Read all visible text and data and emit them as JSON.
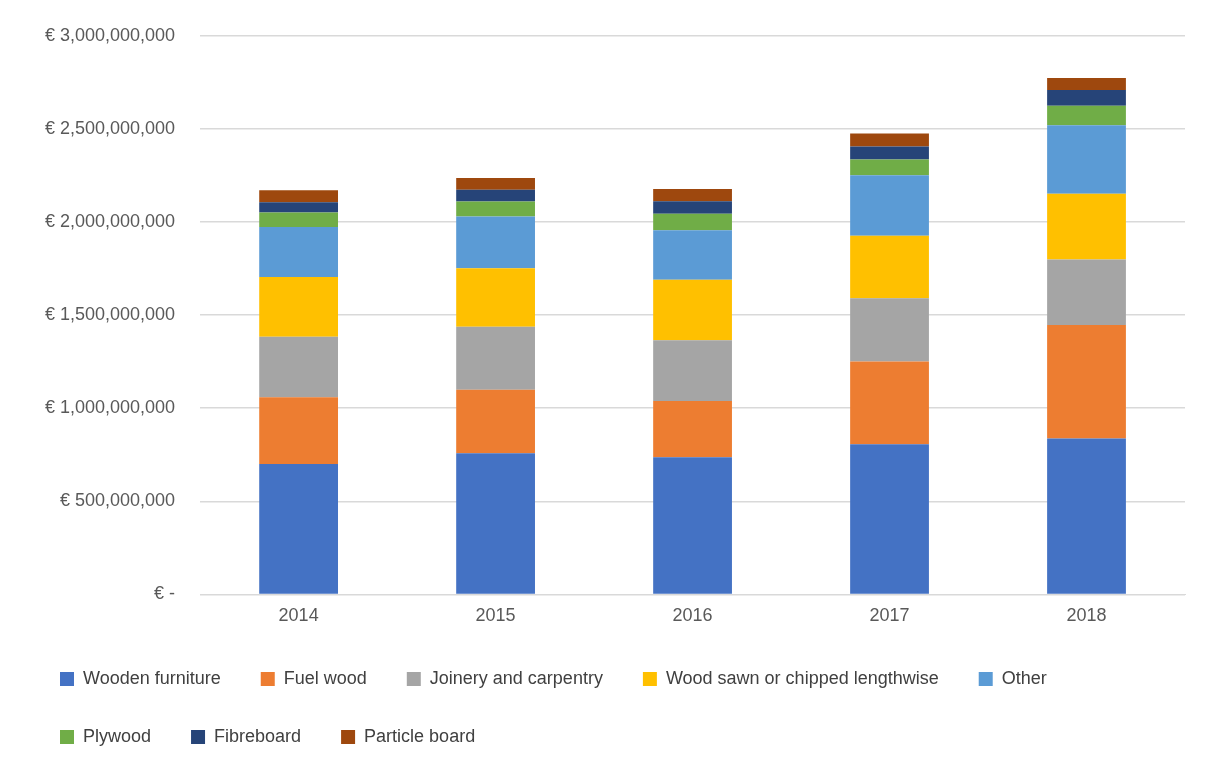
{
  "chart_data": {
    "type": "bar",
    "stacked": true,
    "categories": [
      "2014",
      "2015",
      "2016",
      "2017",
      "2018"
    ],
    "series": [
      {
        "name": "Wooden furniture",
        "color": "#4472c4",
        "values": [
          700000000,
          758000000,
          736000000,
          806000000,
          837000000
        ]
      },
      {
        "name": "Fuel wood",
        "color": "#ed7d31",
        "values": [
          359000000,
          341000000,
          302000000,
          445000000,
          610000000
        ]
      },
      {
        "name": "Joinery and carpentry",
        "color": "#a5a5a5",
        "values": [
          325000000,
          338000000,
          327000000,
          340000000,
          352000000
        ]
      },
      {
        "name": "Wood sawn or chipped lengthwise",
        "color": "#ffc000",
        "values": [
          320000000,
          314000000,
          325000000,
          335000000,
          353000000
        ]
      },
      {
        "name": "Other",
        "color": "#5b9bd5",
        "values": [
          269000000,
          279000000,
          266000000,
          325000000,
          367000000
        ]
      },
      {
        "name": "Plywood",
        "color": "#70ad47",
        "values": [
          78000000,
          80000000,
          88000000,
          84000000,
          106000000
        ]
      },
      {
        "name": "Fibreboard",
        "color": "#264478",
        "values": [
          55000000,
          63000000,
          68000000,
          70000000,
          84000000
        ]
      },
      {
        "name": "Particle board",
        "color": "#9e480e",
        "values": [
          65000000,
          63000000,
          65000000,
          70000000,
          65000000
        ]
      }
    ],
    "ylim": [
      0,
      3000000000
    ],
    "yticks": [
      {
        "value": 0,
        "label": "€ -"
      },
      {
        "value": 500000000,
        "label": "€ 500,000,000"
      },
      {
        "value": 1000000000,
        "label": "€ 1,000,000,000"
      },
      {
        "value": 1500000000,
        "label": "€ 1,500,000,000"
      },
      {
        "value": 2000000000,
        "label": "€ 2,000,000,000"
      },
      {
        "value": 2500000000,
        "label": "€ 2,500,000,000"
      },
      {
        "value": 3000000000,
        "label": "€ 3,000,000,000"
      }
    ],
    "grid": "y",
    "legend": "bottom"
  }
}
